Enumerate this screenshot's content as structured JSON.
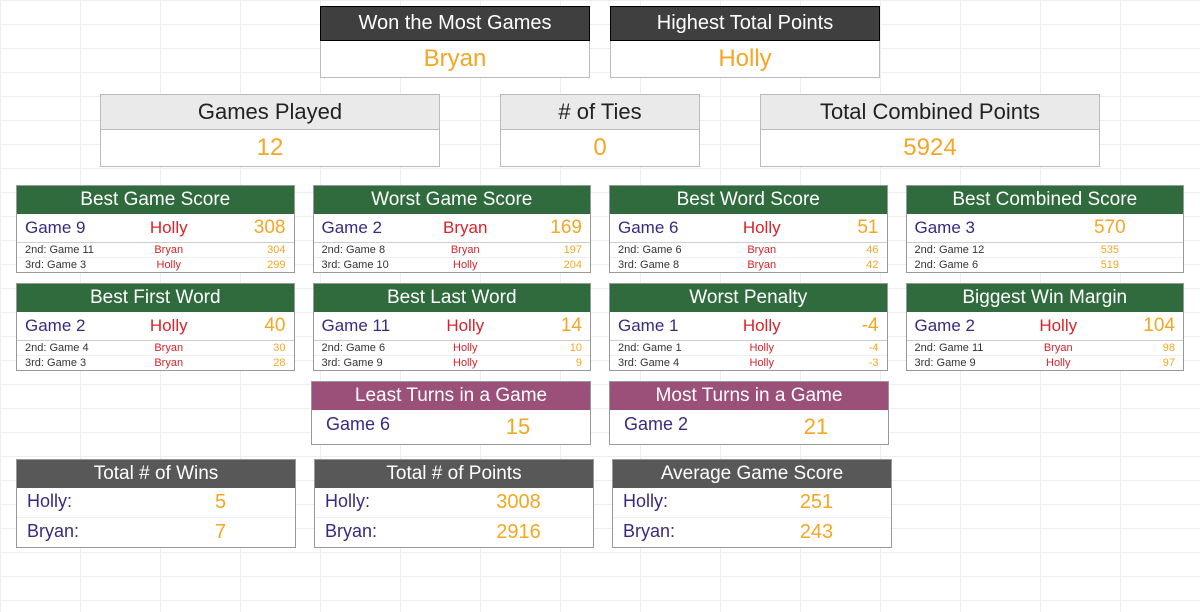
{
  "colors": {
    "header_dark": "#3f3f3f",
    "header_grey_light": "#eaeaea",
    "header_green": "#2f6b3c",
    "header_pink": "#9b5079",
    "header_grey": "#585858",
    "accent_orange": "#f5a623",
    "accent_red": "#d8232a",
    "accent_purple": "#3a2a7f",
    "grid_line": "#eeeeee",
    "background": "#ffffff"
  },
  "typography": {
    "family": "Arial",
    "title_large": 22,
    "title_block": 19,
    "main_value": 19,
    "sub_row": 11
  },
  "headline": {
    "most_wins": {
      "label": "Won the Most Games",
      "value": "Bryan"
    },
    "highest_points": {
      "label": "Highest Total Points",
      "value": "Holly"
    }
  },
  "summary": {
    "games_played": {
      "label": "Games Played",
      "value": "12"
    },
    "ties": {
      "label": "# of Ties",
      "value": "0"
    },
    "combined_points": {
      "label": "Total Combined Points",
      "value": "5924"
    }
  },
  "stats_row1": {
    "best_game": {
      "title": "Best Game Score",
      "main": {
        "game": "Game 9",
        "player": "Holly",
        "value": "308"
      },
      "sub": [
        {
          "rank": "2nd: Game 11",
          "player": "Bryan",
          "value": "304"
        },
        {
          "rank": "3rd: Game 3",
          "player": "Holly",
          "value": "299"
        }
      ]
    },
    "worst_game": {
      "title": "Worst Game Score",
      "main": {
        "game": "Game 2",
        "player": "Bryan",
        "value": "169"
      },
      "sub": [
        {
          "rank": "2nd: Game 8",
          "player": "Bryan",
          "value": "197"
        },
        {
          "rank": "3rd: Game 10",
          "player": "Holly",
          "value": "204"
        }
      ]
    },
    "best_word": {
      "title": "Best Word Score",
      "main": {
        "game": "Game 6",
        "player": "Holly",
        "value": "51"
      },
      "sub": [
        {
          "rank": "2nd: Game 6",
          "player": "Bryan",
          "value": "46"
        },
        {
          "rank": "3rd: Game 8",
          "player": "Bryan",
          "value": "42"
        }
      ]
    },
    "best_combined": {
      "title": "Best Combined Score",
      "main": {
        "game": "Game 3",
        "value": "570"
      },
      "sub": [
        {
          "rank": "2nd: Game 12",
          "value": "535"
        },
        {
          "rank": "2nd: Game 6",
          "value": "519"
        }
      ]
    }
  },
  "stats_row2": {
    "best_first": {
      "title": "Best First Word",
      "main": {
        "game": "Game 2",
        "player": "Holly",
        "value": "40"
      },
      "sub": [
        {
          "rank": "2nd: Game 4",
          "player": "Bryan",
          "value": "30"
        },
        {
          "rank": "3rd: Game 3",
          "player": "Bryan",
          "value": "28"
        }
      ]
    },
    "best_last": {
      "title": "Best Last Word",
      "main": {
        "game": "Game 11",
        "player": "Holly",
        "value": "14"
      },
      "sub": [
        {
          "rank": "2nd: Game 6",
          "player": "Holly",
          "value": "10"
        },
        {
          "rank": "3rd: Game 9",
          "player": "Holly",
          "value": "9"
        }
      ]
    },
    "worst_penalty": {
      "title": "Worst Penalty",
      "main": {
        "game": "Game 1",
        "player": "Holly",
        "value": "-4"
      },
      "sub": [
        {
          "rank": "2nd: Game 1",
          "player": "Holly",
          "value": "-4"
        },
        {
          "rank": "3rd: Game 4",
          "player": "Holly",
          "value": "-3"
        }
      ]
    },
    "biggest_margin": {
      "title": "Biggest Win Margin",
      "main": {
        "game": "Game 2",
        "player": "Holly",
        "value": "104"
      },
      "sub": [
        {
          "rank": "2nd: Game 11",
          "player": "Bryan",
          "value": "98"
        },
        {
          "rank": "3rd: Game 9",
          "player": "Holly",
          "value": "97"
        }
      ]
    }
  },
  "turns": {
    "least": {
      "title": "Least Turns in a Game",
      "game": "Game 6",
      "value": "15"
    },
    "most": {
      "title": "Most Turns in a Game",
      "game": "Game 2",
      "value": "21"
    }
  },
  "totals": {
    "wins": {
      "title": "Total # of Wins",
      "rows": [
        {
          "name": "Holly:",
          "value": "5"
        },
        {
          "name": "Bryan:",
          "value": "7"
        }
      ]
    },
    "points": {
      "title": "Total # of Points",
      "rows": [
        {
          "name": "Holly:",
          "value": "3008"
        },
        {
          "name": "Bryan:",
          "value": "2916"
        }
      ]
    },
    "avg": {
      "title": "Average Game Score",
      "rows": [
        {
          "name": "Holly:",
          "value": "251"
        },
        {
          "name": "Bryan:",
          "value": "243"
        }
      ]
    }
  }
}
